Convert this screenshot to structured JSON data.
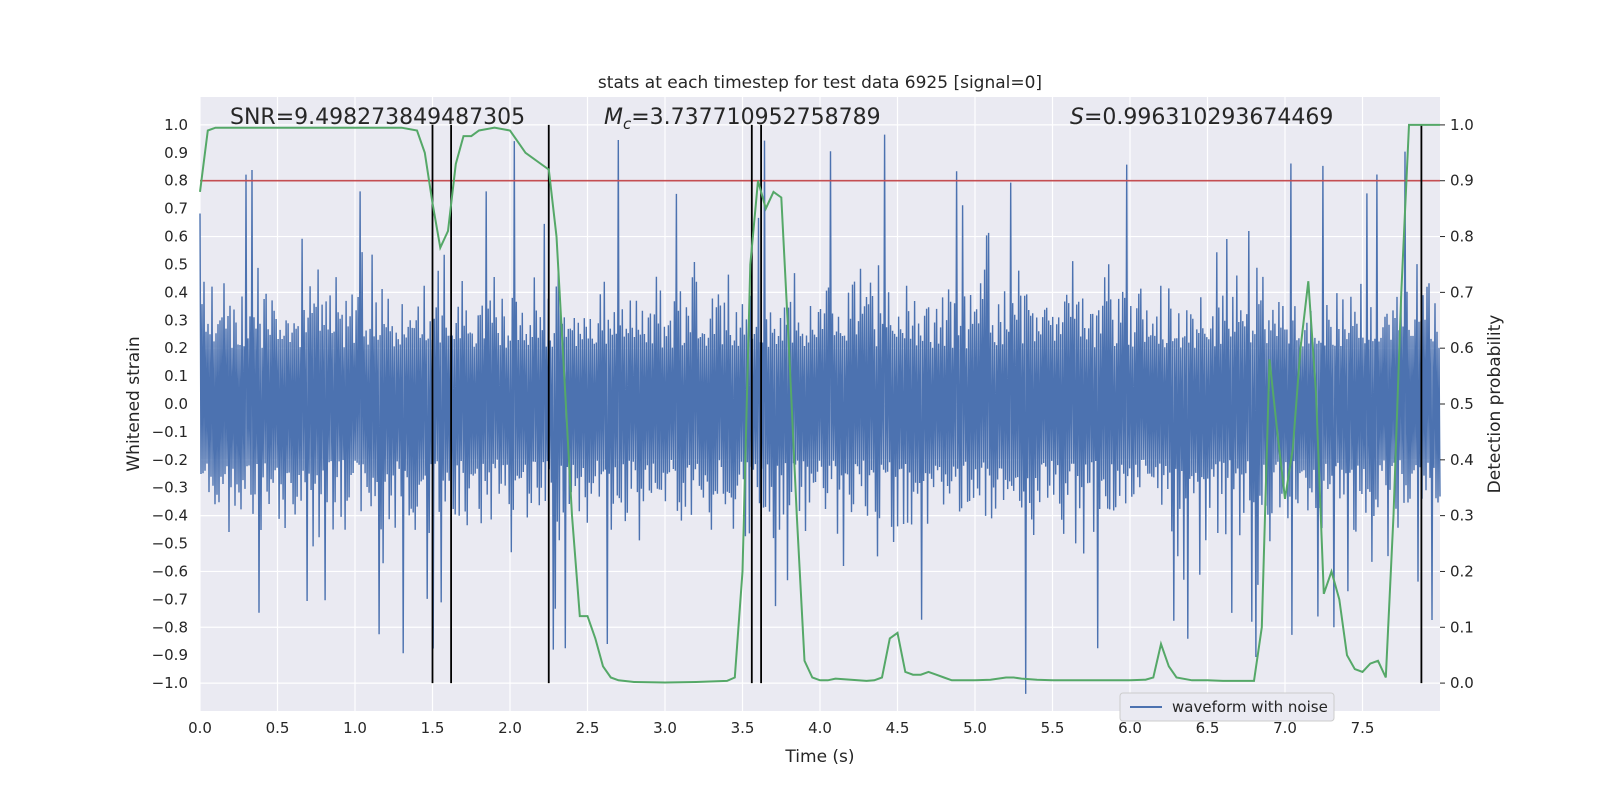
{
  "chart_data": {
    "type": "line",
    "title": "stats at each timestep for test data 6925 [signal=0]",
    "xlabel": "Time (s)",
    "ylabel_left": "Whitened strain",
    "ylabel_right": "Detection probability",
    "xlim": [
      0.0,
      8.0
    ],
    "ylim_left": [
      -1.1,
      1.1
    ],
    "ylim_right": [
      -0.05,
      1.05
    ],
    "x_ticks": [
      "0.0",
      "0.5",
      "1.0",
      "1.5",
      "2.0",
      "2.5",
      "3.0",
      "3.5",
      "4.0",
      "4.5",
      "5.0",
      "5.5",
      "6.0",
      "6.5",
      "7.0",
      "7.5"
    ],
    "y_ticks_left": [
      "1.0",
      "0.9",
      "0.8",
      "0.7",
      "0.6",
      "0.5",
      "0.4",
      "0.3",
      "0.2",
      "0.1",
      "0.0",
      "-0.1",
      "-0.2",
      "-0.3",
      "-0.4",
      "-0.5",
      "-0.6",
      "-0.7",
      "-0.8",
      "-0.9",
      "-1.0"
    ],
    "y_ticks_right": [
      "1.0",
      "0.9",
      "0.8",
      "0.7",
      "0.6",
      "0.5",
      "0.4",
      "0.3",
      "0.2",
      "0.1",
      "0.0"
    ],
    "grid": true,
    "legend_position": "bottom-right",
    "stats": {
      "snr": "SNR=9.498273849487305",
      "mc_symbol": "M",
      "mc_sub": "c",
      "mc_value": "=3.737710952758789",
      "s_symbol": "S",
      "s_value": "=0.996310293674469"
    },
    "series": [
      {
        "name": "waveform with noise",
        "color": "#4c72b0",
        "description": "whitened strain noise, bulk amplitude about ±0.4 with spikes up to ±1.0"
      },
      {
        "color": "#55a868",
        "axis": "right",
        "x": [
          0.0,
          0.05,
          0.1,
          0.2,
          0.3,
          0.5,
          0.7,
          0.9,
          1.1,
          1.3,
          1.4,
          1.45,
          1.5,
          1.55,
          1.6,
          1.65,
          1.7,
          1.75,
          1.8,
          1.9,
          2.0,
          2.05,
          2.1,
          2.15,
          2.2,
          2.25,
          2.3,
          2.35,
          2.4,
          2.45,
          2.5,
          2.55,
          2.6,
          2.65,
          2.7,
          2.8,
          3.0,
          3.2,
          3.4,
          3.45,
          3.5,
          3.55,
          3.6,
          3.65,
          3.7,
          3.75,
          3.8,
          3.85,
          3.9,
          3.95,
          4.0,
          4.05,
          4.1,
          4.2,
          4.3,
          4.35,
          4.4,
          4.45,
          4.5,
          4.55,
          4.6,
          4.65,
          4.7,
          4.75,
          4.8,
          4.85,
          4.9,
          5.0,
          5.1,
          5.2,
          5.25,
          5.3,
          5.4,
          5.5,
          5.6,
          5.8,
          6.0,
          6.1,
          6.15,
          6.2,
          6.25,
          6.3,
          6.4,
          6.5,
          6.6,
          6.7,
          6.8,
          6.85,
          6.9,
          6.95,
          7.0,
          7.05,
          7.1,
          7.15,
          7.2,
          7.25,
          7.3,
          7.35,
          7.4,
          7.45,
          7.5,
          7.55,
          7.6,
          7.65,
          7.7,
          7.75,
          7.8,
          7.85,
          7.9,
          7.95,
          8.0
        ],
        "y": [
          0.88,
          0.99,
          0.995,
          0.995,
          0.995,
          0.995,
          0.995,
          0.995,
          0.995,
          0.995,
          0.99,
          0.95,
          0.86,
          0.78,
          0.81,
          0.93,
          0.98,
          0.98,
          0.99,
          0.995,
          0.99,
          0.97,
          0.95,
          0.94,
          0.93,
          0.92,
          0.8,
          0.55,
          0.3,
          0.12,
          0.12,
          0.08,
          0.03,
          0.01,
          0.005,
          0.002,
          0.001,
          0.002,
          0.004,
          0.01,
          0.2,
          0.75,
          0.9,
          0.85,
          0.88,
          0.87,
          0.6,
          0.3,
          0.04,
          0.01,
          0.005,
          0.005,
          0.008,
          0.006,
          0.004,
          0.005,
          0.01,
          0.08,
          0.09,
          0.02,
          0.015,
          0.015,
          0.02,
          0.015,
          0.01,
          0.005,
          0.005,
          0.005,
          0.006,
          0.01,
          0.01,
          0.008,
          0.006,
          0.005,
          0.005,
          0.005,
          0.005,
          0.006,
          0.01,
          0.07,
          0.03,
          0.01,
          0.005,
          0.005,
          0.004,
          0.004,
          0.004,
          0.1,
          0.58,
          0.45,
          0.33,
          0.42,
          0.6,
          0.72,
          0.52,
          0.16,
          0.2,
          0.15,
          0.05,
          0.025,
          0.02,
          0.035,
          0.04,
          0.01,
          0.3,
          0.7,
          1.0,
          1.0,
          1.0,
          1.0,
          1.0
        ]
      }
    ],
    "threshold_line": {
      "value": 0.9,
      "axis": "right",
      "color": "#c44e52"
    },
    "vertical_lines_x": [
      1.5,
      1.62,
      2.25,
      3.56,
      3.62,
      7.88
    ],
    "colors": {
      "background": "#eaeaf2",
      "grid": "#ffffff",
      "vline": "#000000"
    }
  }
}
